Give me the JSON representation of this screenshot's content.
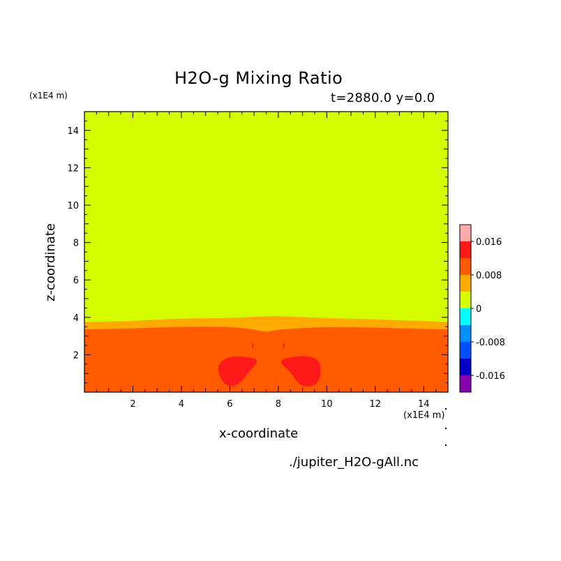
{
  "chart_data": {
    "type": "heatmap",
    "title": "H2O-g Mixing Ratio",
    "subtitle": "t=2880.0 y=0.0",
    "xlabel": "x-coordinate",
    "ylabel": "z-coordinate",
    "x_unit": "(x1E4 m)",
    "y_unit": "(x1E4 m)",
    "xlim": [
      0,
      15
    ],
    "ylim": [
      0,
      15
    ],
    "x_ticks": [
      2,
      4,
      6,
      8,
      10,
      12,
      14
    ],
    "y_ticks": [
      2,
      4,
      6,
      8,
      10,
      12,
      14
    ],
    "x_tick_labels": [
      "2",
      "4",
      "6",
      "8",
      "10",
      "12",
      "14"
    ],
    "y_tick_labels": [
      "2",
      "4",
      "6",
      "8",
      "10",
      "12",
      "14"
    ],
    "colorbar": {
      "levels": [
        {
          "color": "#ffaaaa"
        },
        {
          "color": "#ff1a1a"
        },
        {
          "color": "#ff5a00"
        },
        {
          "color": "#ffaa00"
        },
        {
          "color": "#d5ff00"
        },
        {
          "color": "#00ffff"
        },
        {
          "color": "#0090ff"
        },
        {
          "color": "#0050ff"
        },
        {
          "color": "#0000c8"
        },
        {
          "color": "#8800b0"
        }
      ],
      "labels": [
        {
          "text": "0.016",
          "value": 0.016
        },
        {
          "text": "0.008",
          "value": 0.008
        },
        {
          "text": "0",
          "value": 0
        },
        {
          "text": "-0.008",
          "value": -0.008
        },
        {
          "text": "-0.016",
          "value": -0.016
        }
      ]
    },
    "regions": [
      {
        "name": "upper",
        "color": "#d5ff00"
      },
      {
        "name": "transition",
        "color": "#ffaa00"
      },
      {
        "name": "lower",
        "color": "#ff5a00"
      },
      {
        "name": "plumes",
        "color": "#ff1a1a"
      }
    ],
    "upper_boundary_z": [
      [
        0,
        3.75
      ],
      [
        2,
        3.8
      ],
      [
        4,
        3.95
      ],
      [
        6,
        3.95
      ],
      [
        7.7,
        4.1
      ],
      [
        10,
        3.95
      ],
      [
        12,
        3.9
      ],
      [
        15,
        3.75
      ]
    ],
    "transition_bottom_z": [
      [
        0,
        3.35
      ],
      [
        2,
        3.4
      ],
      [
        4,
        3.5
      ],
      [
        6,
        3.5
      ],
      [
        7.0,
        3.35
      ],
      [
        7.5,
        3.2
      ],
      [
        8.0,
        3.35
      ],
      [
        10,
        3.5
      ],
      [
        12,
        3.45
      ],
      [
        15,
        3.35
      ]
    ],
    "plume_left": [
      [
        5.55,
        1.6
      ],
      [
        6.1,
        1.95
      ],
      [
        6.9,
        1.85
      ],
      [
        7.2,
        1.7
      ],
      [
        6.8,
        1.1
      ],
      [
        6.3,
        0.3
      ],
      [
        5.8,
        0.35
      ],
      [
        5.5,
        1.0
      ]
    ],
    "plume_right": [
      [
        8.8,
        1.95
      ],
      [
        9.4,
        1.9
      ],
      [
        9.75,
        1.6
      ],
      [
        9.75,
        0.8
      ],
      [
        9.5,
        0.3
      ],
      [
        8.9,
        0.3
      ],
      [
        8.5,
        1.1
      ],
      [
        7.95,
        1.7
      ]
    ],
    "footer": "./jupiter_H2O-gAll.nc"
  }
}
